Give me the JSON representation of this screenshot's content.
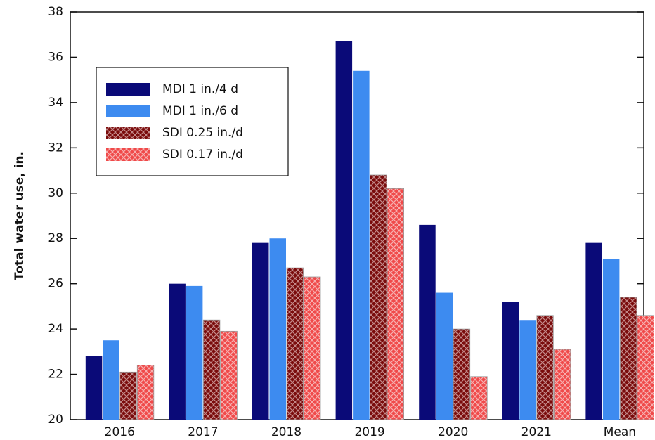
{
  "chart_data": {
    "type": "bar",
    "y_label": "Total water use, in.",
    "categories": [
      "2016",
      "2017",
      "2018",
      "2019",
      "2020",
      "2021",
      "Mean"
    ],
    "series": [
      {
        "name": "MDI 1 in./4 d",
        "color": "#0a0a78",
        "values": [
          22.8,
          26.0,
          27.8,
          36.7,
          28.6,
          25.2,
          27.8
        ]
      },
      {
        "name": "MDI 1 in./6 d",
        "color": "#3d8bf0",
        "values": [
          23.5,
          25.9,
          28.0,
          35.4,
          25.6,
          24.4,
          27.1
        ]
      },
      {
        "name": "SDI 0.25 in./d",
        "color": "#7a0c0c",
        "values": [
          22.1,
          24.4,
          26.7,
          30.8,
          24.0,
          24.6,
          25.4
        ]
      },
      {
        "name": "SDI 0.17 in./d",
        "color": "#f04a4a",
        "values": [
          22.4,
          23.9,
          26.3,
          30.2,
          21.9,
          23.1,
          24.6
        ]
      }
    ],
    "ylim": [
      20,
      38
    ],
    "yticks": [
      20,
      22,
      24,
      26,
      28,
      30,
      32,
      34,
      36,
      38
    ]
  }
}
